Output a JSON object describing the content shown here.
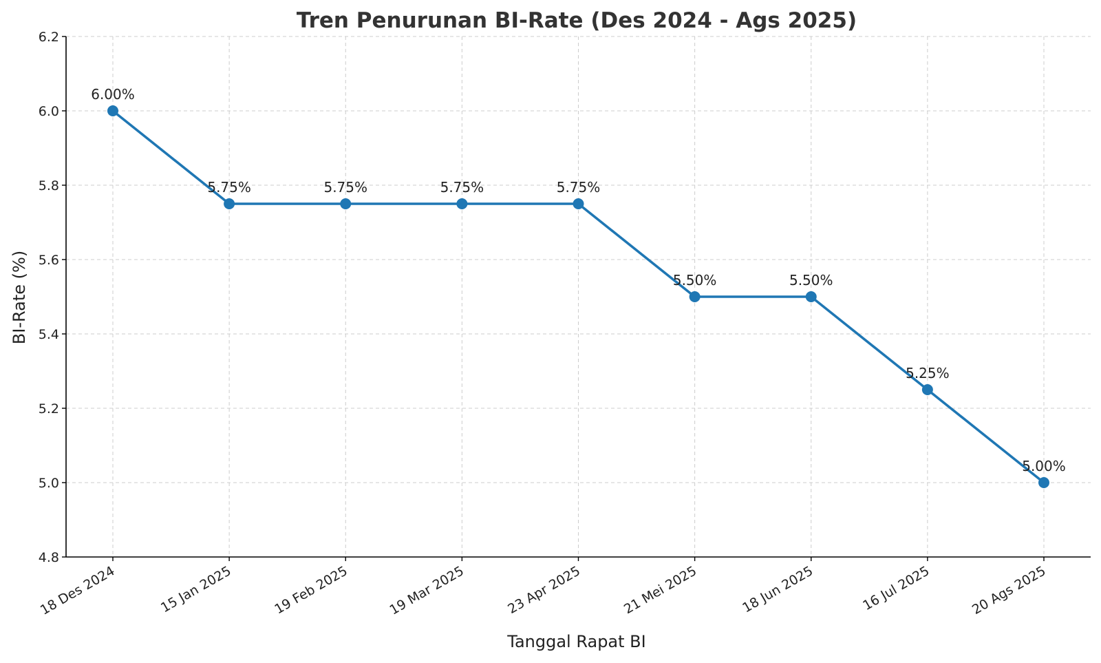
{
  "chart_data": {
    "type": "line",
    "title": "Tren Penurunan BI-Rate (Des 2024 - Ags 2025)",
    "xlabel": "Tanggal Rapat BI",
    "ylabel": "BI-Rate (%)",
    "categories": [
      "18 Des 2024",
      "15 Jan 2025",
      "19 Feb 2025",
      "19 Mar 2025",
      "23 Apr 2025",
      "21 Mei 2025",
      "18 Jun 2025",
      "16 Jul 2025",
      "20 Ags 2025"
    ],
    "series": [
      {
        "values": [
          6.0,
          5.75,
          5.75,
          5.75,
          5.75,
          5.5,
          5.5,
          5.25,
          5.0
        ],
        "color": "#1f77b4"
      }
    ],
    "data_labels": [
      "6.00%",
      "5.75%",
      "5.75%",
      "5.75%",
      "5.75%",
      "5.50%",
      "5.50%",
      "5.25%",
      "5.00%"
    ],
    "ylim": [
      4.8,
      6.2
    ],
    "yticks": [
      "4.8",
      "5.0",
      "5.2",
      "5.4",
      "5.6",
      "5.8",
      "6.0",
      "6.2"
    ],
    "grid": true,
    "marker": "circle"
  }
}
